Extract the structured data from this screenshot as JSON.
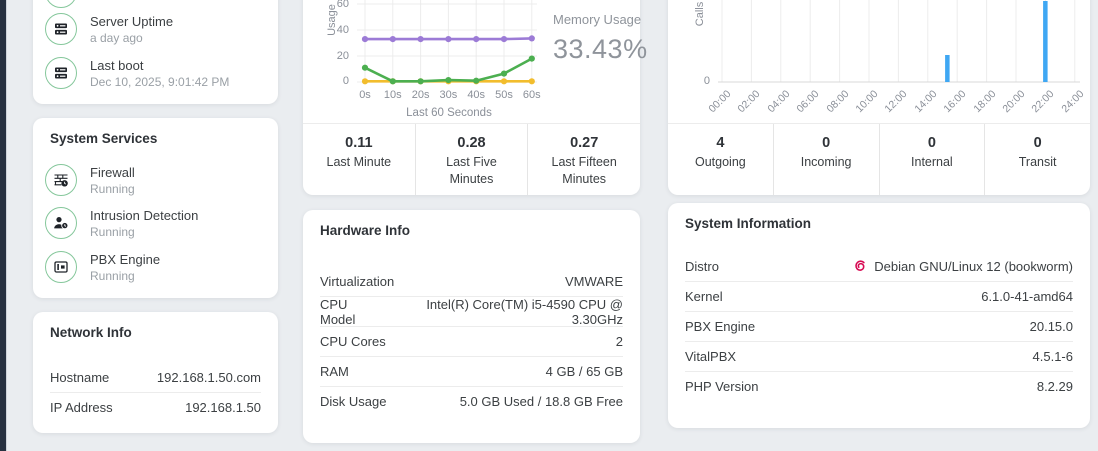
{
  "theme": {
    "background": "#eaedf0",
    "sidebar_dark": "#273140",
    "card_white": "#ffffff",
    "icon_circle_green": "#85c79b",
    "bar_blue": "#3fa7f3",
    "line_purple": "#9c7bd6",
    "line_green": "#4caf50",
    "line_yellow": "#f2bd2d",
    "debian_pink": "#d70a53",
    "text_dark": "#3c4043",
    "text_gray": "#8a8f98"
  },
  "left": {
    "uptime_card": {
      "partial_icon": "server-icon",
      "items": [
        {
          "icon": "server-icon",
          "title": "Server Uptime",
          "subtitle": "a day ago"
        },
        {
          "icon": "server-icon",
          "title": "Last boot",
          "subtitle": "Dec 10, 2025, 9:01:42 PM"
        }
      ]
    },
    "services_card": {
      "title": "System Services",
      "items": [
        {
          "icon": "firewall-icon",
          "title": "Firewall",
          "subtitle": "Running"
        },
        {
          "icon": "user-clock-icon",
          "title": "Intrusion Detection",
          "subtitle": "Running"
        },
        {
          "icon": "pbx-engine-icon",
          "title": "PBX Engine",
          "subtitle": "Running"
        }
      ]
    },
    "network_card": {
      "title": "Network Info",
      "rows": [
        {
          "label": "Hostname",
          "value": "192.168.1.50.com"
        },
        {
          "label": "IP Address",
          "value": "192.168.1.50"
        }
      ]
    }
  },
  "middle": {
    "usage_card": {
      "stats": [
        {
          "value": "0.11",
          "label": "Last Minute"
        },
        {
          "value": "0.28",
          "label": "Last Five Minutes"
        },
        {
          "value": "0.27",
          "label": "Last Fifteen Minutes"
        }
      ]
    },
    "hardware_card": {
      "title": "Hardware Info",
      "rows": [
        {
          "label": "Virtualization",
          "value": "VMWARE"
        },
        {
          "label": "CPU Model",
          "value": "Intel(R) Core(TM) i5-4590 CPU @ 3.30GHz"
        },
        {
          "label": "CPU Cores",
          "value": "2"
        },
        {
          "label": "RAM",
          "value": "4 GB / 65 GB"
        },
        {
          "label": "Disk Usage",
          "value": "5.0 GB Used / 18.8 GB Free"
        }
      ]
    }
  },
  "right": {
    "calls_card": {
      "stats": [
        {
          "value": "4",
          "label": "Outgoing"
        },
        {
          "value": "0",
          "label": "Incoming"
        },
        {
          "value": "0",
          "label": "Internal"
        },
        {
          "value": "0",
          "label": "Transit"
        }
      ]
    },
    "system_card": {
      "title": "System Information",
      "rows": [
        {
          "label": "Distro",
          "value": "Debian GNU/Linux 12 (bookworm)",
          "icon": "debian-icon"
        },
        {
          "label": "Kernel",
          "value": "6.1.0-41-amd64"
        },
        {
          "label": "PBX Engine",
          "value": "20.15.0"
        },
        {
          "label": "VitalPBX",
          "value": "4.5.1-6"
        },
        {
          "label": "PHP Version",
          "value": "8.2.29"
        }
      ]
    }
  },
  "chart_data": [
    {
      "id": "usage-chart",
      "type": "line",
      "ylabel": "Usage",
      "xlabel": "Last 60 Seconds",
      "x_ticks": [
        "0s",
        "10s",
        "20s",
        "30s",
        "40s",
        "50s",
        "60s"
      ],
      "y_ticks": [
        "0",
        "20",
        "40",
        "60"
      ],
      "ylim_visible": [
        0,
        65
      ],
      "grid": true,
      "series": [
        {
          "name": "memory-usage",
          "color": "#9c7bd6",
          "values": [
            33,
            33,
            33,
            33,
            33,
            33,
            33.5
          ]
        },
        {
          "name": "green-series",
          "color": "#4caf50",
          "values": [
            11,
            0.5,
            0.5,
            1.5,
            1,
            6.5,
            18
          ]
        },
        {
          "name": "yellow-series",
          "color": "#f2bd2d",
          "values": [
            0.5,
            0.5,
            0.5,
            0.5,
            0.5,
            0.5,
            0.5
          ]
        }
      ],
      "annotation": {
        "label": "Memory Usage",
        "value": "33.43%"
      }
    },
    {
      "id": "calls-chart",
      "type": "bar",
      "ylabel": "Calls",
      "x_ticks": [
        "00:00",
        "02:00",
        "04:00",
        "06:00",
        "08:00",
        "10:00",
        "12:00",
        "14:00",
        "16:00",
        "18:00",
        "20:00",
        "22:00",
        "24:00"
      ],
      "y_ticks": [
        "0"
      ],
      "bar_color": "#3fa7f3",
      "grid": true,
      "bars": [
        {
          "time": "15:20",
          "time_hours": 15.33,
          "calls": 1
        },
        {
          "time": "22:00",
          "time_hours": 22.0,
          "calls": 3
        }
      ]
    }
  ]
}
